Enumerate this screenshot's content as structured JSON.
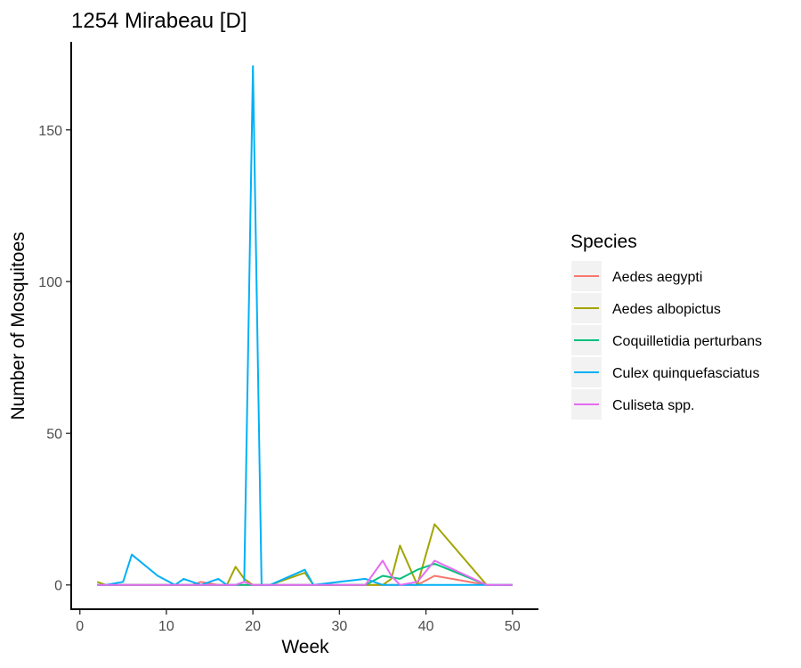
{
  "chart_data": {
    "type": "line",
    "title": "1254 Mirabeau [D]",
    "xlabel": "Week",
    "ylabel": "Number of Mosquitoes",
    "xlim": [
      -1,
      53
    ],
    "ylim": [
      -8,
      179
    ],
    "xticks": [
      0,
      10,
      20,
      30,
      40,
      50
    ],
    "yticks": [
      0,
      50,
      100,
      150
    ],
    "grid": false,
    "legend": {
      "title": "Species",
      "position": "right"
    },
    "series": [
      {
        "name": "Aedes aegypti",
        "color": "#F8766D",
        "x": [
          2,
          5,
          11,
          13,
          14,
          16,
          18,
          19,
          20,
          21,
          22,
          26,
          27,
          33,
          35,
          36,
          37,
          39,
          41,
          47,
          50
        ],
        "y": [
          0,
          0,
          0,
          0,
          1,
          0,
          0,
          0,
          0,
          0,
          0,
          0,
          0,
          0,
          0,
          0,
          0,
          0,
          3,
          0,
          0
        ]
      },
      {
        "name": "Aedes albopictus",
        "color": "#A3A500",
        "x": [
          2,
          3,
          11,
          13,
          14,
          16,
          17,
          18,
          19,
          20,
          21,
          22,
          26,
          27,
          33,
          35,
          36,
          37,
          39,
          41,
          47,
          50
        ],
        "y": [
          1,
          0,
          0,
          0,
          0,
          0,
          0,
          6,
          2,
          0,
          0,
          0,
          4,
          0,
          0,
          0,
          2,
          13,
          0,
          20,
          0,
          0
        ]
      },
      {
        "name": "Coquilletidia perturbans",
        "color": "#00BF7D",
        "x": [
          2,
          5,
          11,
          13,
          16,
          18,
          19,
          20,
          21,
          22,
          26,
          27,
          33,
          35,
          37,
          39,
          41,
          47,
          50
        ],
        "y": [
          0,
          0,
          0,
          0,
          0,
          0,
          0,
          0,
          0,
          0,
          0,
          0,
          0,
          3,
          2,
          5,
          7,
          0,
          0
        ]
      },
      {
        "name": "Culex quinquefasciatus",
        "color": "#00B0F6",
        "x": [
          2,
          3,
          5,
          6,
          9,
          11,
          12,
          13,
          14,
          16,
          17,
          18,
          19,
          20,
          21,
          22,
          26,
          27,
          30,
          33,
          35,
          37,
          39,
          41,
          47,
          50
        ],
        "y": [
          0,
          0,
          1,
          10,
          3,
          0,
          2,
          1,
          0,
          2,
          0,
          0,
          1,
          171,
          0,
          0,
          5,
          0,
          1,
          2,
          0,
          0,
          0,
          0,
          0,
          0
        ]
      },
      {
        "name": "Culiseta spp.",
        "color": "#E76BF3",
        "x": [
          2,
          5,
          11,
          13,
          16,
          18,
          19,
          20,
          21,
          22,
          26,
          27,
          33,
          35,
          36,
          37,
          39,
          41,
          47,
          50
        ],
        "y": [
          0,
          0,
          0,
          0,
          0,
          0,
          1,
          0,
          0,
          0,
          0,
          0,
          0,
          8,
          3,
          0,
          1,
          8,
          0,
          0
        ]
      }
    ]
  }
}
